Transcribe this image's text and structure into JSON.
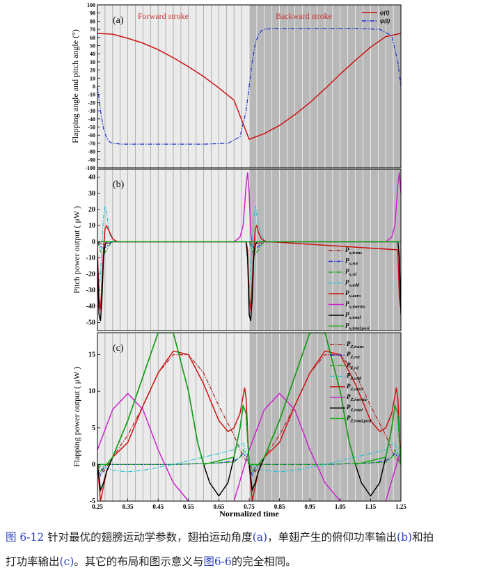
{
  "caption": {
    "fig_label": "图 6-12",
    "line1_a": " 针对最优的翅膀运动学参数，翅拍运动角度",
    "line1_ref_a": "(a)",
    "line1_b": "，单翅产生的俯仰功率输出",
    "line1_ref_b": "(b)",
    "line1_c": "和拍",
    "line2_a": "打功率输出",
    "line2_ref_c": "(c)",
    "line2_b": "。其它的布局和图示意义与",
    "line2_ref_fig": "图6-6",
    "line2_c": "的完全相同。"
  },
  "colors": {
    "trans": "#aa2222",
    "rot": "#1a2ad0",
    "rd": "#1aa81a",
    "add": "#25c4d4",
    "aero": "#cc1111",
    "inertia": "#cc22cc",
    "total": "#000000",
    "total_posi": "#11aa11",
    "stroke_label": "#cc3333",
    "forward_shade": "#ebebeb",
    "backward_shade": "#b8b8b8"
  },
  "chart_data": [
    {
      "type": "line",
      "panel_label": "(a)",
      "ylabel": "Flapping angle and pitch angle (°)",
      "ylim": [
        -100,
        100
      ],
      "yticks": [
        -100,
        -90,
        -80,
        -70,
        -60,
        -50,
        -40,
        -30,
        -20,
        -10,
        0,
        10,
        20,
        30,
        40,
        50,
        60,
        70,
        80,
        90,
        100
      ],
      "xlim": [
        0.25,
        1.25
      ],
      "annotations": [
        "Forward stroke",
        "Backward stroke"
      ],
      "legend_position": "top-right",
      "series": [
        {
          "name": "φ(t)",
          "key": "aero",
          "style": "solid",
          "x": [
            0.25,
            0.3,
            0.35,
            0.4,
            0.45,
            0.5,
            0.55,
            0.6,
            0.65,
            0.7,
            0.75,
            0.8,
            0.85,
            0.9,
            0.95,
            1.0,
            1.05,
            1.1,
            1.15,
            1.2,
            1.25
          ],
          "y": [
            65,
            64,
            59,
            53,
            45,
            35,
            24,
            12,
            -2,
            -17,
            -65,
            -58,
            -48,
            -35,
            -20,
            -3,
            15,
            32,
            48,
            61,
            65
          ]
        },
        {
          "name": "ψ(t)",
          "key": "rot",
          "style": "dashdot",
          "x": [
            0.25,
            0.26,
            0.27,
            0.28,
            0.29,
            0.3,
            0.33,
            0.4,
            0.5,
            0.6,
            0.68,
            0.72,
            0.74,
            0.75,
            0.76,
            0.77,
            0.78,
            0.79,
            0.8,
            0.83,
            0.9,
            1.0,
            1.1,
            1.18,
            1.22,
            1.24,
            1.25
          ],
          "y": [
            0,
            -30,
            -52,
            -63,
            -68,
            -70,
            -71,
            -71,
            -71,
            -71,
            -70,
            -62,
            -30,
            0,
            30,
            52,
            63,
            68,
            70,
            71,
            71,
            71,
            71,
            70,
            62,
            30,
            0
          ]
        }
      ]
    },
    {
      "type": "line",
      "panel_label": "(b)",
      "ylabel": "Pitch power output ( μW )",
      "ylim": [
        -55,
        45
      ],
      "yticks": [
        -50,
        -40,
        -30,
        -20,
        -10,
        0,
        10,
        20,
        30,
        40
      ],
      "xlim": [
        0.25,
        1.25
      ],
      "legend_position": "right",
      "series": [
        {
          "name": "P_x,trans",
          "key": "trans",
          "style": "dashdot",
          "x": [
            0.25,
            0.26,
            0.27,
            0.28,
            0.29,
            0.3,
            0.75,
            0.76,
            0.77,
            0.78,
            0.79,
            0.8,
            1.25
          ],
          "y": [
            0,
            -1,
            -1.5,
            -1,
            -0.5,
            0,
            0,
            -1,
            -1.5,
            -1,
            -0.5,
            0,
            0
          ]
        },
        {
          "name": "P_x,rot",
          "key": "rot",
          "style": "dashdot",
          "x": [
            0.25,
            0.26,
            0.27,
            0.28,
            0.29,
            0.3,
            0.75,
            0.76,
            0.77,
            0.78,
            0.79,
            0.8,
            1.25
          ],
          "y": [
            0,
            -3,
            -4,
            -3,
            -1,
            0,
            0,
            -3,
            -4,
            -3,
            -1,
            0,
            0
          ]
        },
        {
          "name": "P_x,rd",
          "key": "rd",
          "style": "dashdot",
          "x": [
            0.25,
            0.26,
            0.27,
            0.28,
            0.29,
            0.3,
            0.75,
            0.76,
            0.77,
            0.78,
            0.79,
            0.8,
            1.25
          ],
          "y": [
            0,
            -6,
            -8,
            -5,
            -2,
            0,
            0,
            -6,
            -8,
            -5,
            -2,
            0,
            0
          ]
        },
        {
          "name": "P_x,add",
          "key": "add",
          "style": "dashdot",
          "x": [
            0.25,
            0.255,
            0.26,
            0.265,
            0.27,
            0.275,
            0.28,
            0.29,
            0.3,
            0.31,
            0.32,
            0.74,
            0.745,
            0.75,
            0.755,
            0.76,
            0.765,
            0.77,
            0.775,
            0.78,
            0.79,
            0.8,
            0.81,
            0.82,
            1.24,
            1.245,
            1.25
          ],
          "y": [
            -25,
            -30,
            -20,
            0,
            15,
            22,
            18,
            5,
            1,
            0,
            0,
            0,
            -15,
            -30,
            -20,
            0,
            15,
            22,
            18,
            10,
            4,
            1,
            0,
            0,
            0,
            -15,
            -30
          ]
        },
        {
          "name": "P_x,aero",
          "key": "aero",
          "style": "solid",
          "x": [
            0.25,
            0.255,
            0.26,
            0.265,
            0.27,
            0.275,
            0.28,
            0.29,
            0.3,
            0.31,
            0.32,
            0.74,
            0.745,
            0.75,
            0.755,
            0.76,
            0.765,
            0.77,
            0.775,
            0.78,
            0.79,
            0.8,
            0.81,
            0.82,
            1.24,
            1.245,
            1.25
          ],
          "y": [
            -5,
            -35,
            -42,
            -25,
            -5,
            8,
            10,
            6,
            2,
            0.5,
            0,
            0,
            -5,
            -35,
            -42,
            -25,
            -5,
            8,
            10,
            6,
            2,
            0.5,
            0,
            0,
            -5,
            -35,
            -42
          ]
        },
        {
          "name": "P_x,inertia",
          "key": "inertia",
          "style": "solid",
          "x": [
            0.25,
            0.26,
            0.27,
            0.28,
            0.3,
            0.7,
            0.72,
            0.73,
            0.74,
            0.745,
            0.75,
            0.755,
            0.76,
            0.77,
            0.78,
            0.8,
            1.2,
            1.22,
            1.23,
            1.24,
            1.245,
            1.25
          ],
          "y": [
            0,
            0,
            0,
            0,
            0,
            0,
            3,
            10,
            35,
            43,
            30,
            5,
            0,
            0,
            0,
            0,
            0,
            3,
            10,
            35,
            43,
            30
          ]
        },
        {
          "name": "P_x,total",
          "key": "total",
          "style": "solid",
          "x": [
            0.25,
            0.255,
            0.26,
            0.265,
            0.27,
            0.275,
            0.28,
            0.29,
            0.3,
            0.74,
            0.745,
            0.75,
            0.755,
            0.76,
            0.765,
            0.77,
            0.775,
            0.78,
            0.79,
            0.8,
            1.24,
            1.245,
            1.25
          ],
          "y": [
            -10,
            -45,
            -49,
            -35,
            -10,
            -2,
            0,
            0,
            0,
            0,
            -10,
            -45,
            -49,
            -35,
            -10,
            -2,
            0,
            0,
            0,
            0,
            0,
            -10,
            -45
          ]
        },
        {
          "name": "P_x,total,posi",
          "key": "total_posi",
          "style": "solid",
          "x": [
            0.25,
            0.3,
            0.5,
            0.7,
            0.75,
            0.8,
            1.0,
            1.2,
            1.25
          ],
          "y": [
            0,
            0,
            0,
            0,
            0,
            0,
            0,
            0,
            0
          ]
        }
      ]
    },
    {
      "type": "line",
      "panel_label": "(c)",
      "ylabel": "Flapping power output ( μW )",
      "xlabel": "Normalized time",
      "ylim": [
        -5,
        18
      ],
      "yticks": [
        -5,
        0,
        5,
        10,
        15
      ],
      "xlim": [
        0.25,
        1.25
      ],
      "xticks": [
        0.25,
        0.35,
        0.45,
        0.55,
        0.65,
        0.75,
        0.85,
        0.95,
        1.05,
        1.15,
        1.25
      ],
      "xticklabels": [
        "0.25",
        "0.35",
        "0.45",
        "0.55",
        "0.65",
        "0.75",
        "0.85",
        "0.95",
        "1.05",
        "1.15",
        "1.25"
      ],
      "legend_position": "top-right",
      "series": [
        {
          "name": "P_Z,trans",
          "key": "trans",
          "style": "dashdot",
          "x": [
            0.25,
            0.27,
            0.3,
            0.35,
            0.4,
            0.45,
            0.5,
            0.55,
            0.6,
            0.65,
            0.7,
            0.73,
            0.75,
            0.77,
            0.8,
            0.85,
            0.9,
            0.95,
            1.0,
            1.05,
            1.1,
            1.15,
            1.2,
            1.23,
            1.25
          ],
          "y": [
            0,
            -1,
            1,
            4,
            8,
            12.5,
            15,
            15,
            12.5,
            8,
            4,
            1,
            0,
            -1,
            1,
            4,
            8,
            12.5,
            15,
            15,
            12.5,
            8,
            4,
            1,
            0
          ]
        },
        {
          "name": "P_Z,rot",
          "key": "rot",
          "style": "dashdot",
          "x": [
            0.25,
            0.26,
            0.27,
            0.28,
            0.3,
            0.35,
            0.5,
            0.65,
            0.7,
            0.72,
            0.73,
            0.74,
            0.75,
            0.76,
            0.77,
            0.78,
            0.8,
            0.85,
            1.0,
            1.15,
            1.2,
            1.22,
            1.23,
            1.24,
            1.25
          ],
          "y": [
            0,
            -1.5,
            -0.5,
            0,
            0,
            0,
            0,
            0.2,
            0.5,
            1,
            1.5,
            1,
            0,
            -1.5,
            -0.5,
            0,
            0,
            0,
            0,
            0.2,
            0.5,
            1,
            1.5,
            1,
            0
          ]
        },
        {
          "name": "P_Z,rd",
          "key": "rd",
          "style": "dashdot",
          "x": [
            0.25,
            0.26,
            0.27,
            0.28,
            0.3,
            0.5,
            0.7,
            0.72,
            0.73,
            0.74,
            0.75,
            0.76,
            0.77,
            0.78,
            0.8,
            1.0,
            1.2,
            1.22,
            1.23,
            1.24,
            1.25
          ],
          "y": [
            0,
            -1,
            -0.3,
            0,
            0,
            0,
            0.3,
            1,
            2,
            1,
            0,
            -1,
            -0.3,
            0,
            0,
            0,
            0.3,
            1,
            2,
            1,
            0
          ]
        },
        {
          "name": "P_Z,add",
          "key": "add",
          "style": "dashdot",
          "x": [
            0.25,
            0.28,
            0.3,
            0.35,
            0.4,
            0.5,
            0.6,
            0.65,
            0.7,
            0.73,
            0.75,
            0.78,
            0.8,
            0.85,
            0.9,
            1.0,
            1.1,
            1.15,
            1.2,
            1.23,
            1.25
          ],
          "y": [
            0,
            -0.5,
            -0.8,
            -1,
            -0.8,
            0,
            1,
            1.5,
            2,
            3,
            0,
            -0.5,
            -0.8,
            -1,
            -0.8,
            0,
            1,
            1.5,
            2,
            3,
            0
          ]
        },
        {
          "name": "P_Z,aero",
          "key": "aero",
          "style": "solid",
          "x": [
            0.25,
            0.26,
            0.27,
            0.28,
            0.3,
            0.35,
            0.4,
            0.45,
            0.5,
            0.55,
            0.6,
            0.65,
            0.68,
            0.7,
            0.72,
            0.735,
            0.74,
            0.75,
            0.76,
            0.77,
            0.78,
            0.8,
            0.85,
            0.9,
            0.95,
            1.0,
            1.05,
            1.1,
            1.15,
            1.18,
            1.2,
            1.22,
            1.235,
            1.24,
            1.25
          ],
          "y": [
            0,
            -5,
            -3,
            -1,
            1,
            3,
            8,
            12.5,
            15.5,
            15,
            11,
            6,
            4.5,
            5,
            7,
            10.5,
            9,
            0,
            -5,
            -3,
            -1,
            1,
            3,
            8,
            12.5,
            15.5,
            15,
            11,
            6,
            4.5,
            5,
            7,
            10.5,
            9,
            0
          ]
        },
        {
          "name": "P_Z,inertia",
          "key": "inertia",
          "style": "solid",
          "x": [
            0.25,
            0.3,
            0.35,
            0.4,
            0.45,
            0.5,
            0.55,
            0.6,
            0.65,
            0.7,
            0.75,
            0.8,
            0.85,
            0.9,
            0.95,
            1.0,
            1.05,
            1.1,
            1.15,
            1.2,
            1.25
          ],
          "y": [
            2,
            7.5,
            9.7,
            7.5,
            2,
            -2.5,
            -5,
            -6.5,
            -7.5,
            -5,
            2,
            7.5,
            9.7,
            7.5,
            2,
            -2.5,
            -5,
            -6.5,
            -7.5,
            -5,
            2
          ]
        },
        {
          "name": "P_Z,total",
          "key": "total",
          "style": "solid",
          "x": [
            0.25,
            0.26,
            0.27,
            0.28,
            0.3,
            0.35,
            0.4,
            0.45,
            0.5,
            0.55,
            0.58,
            0.6,
            0.62,
            0.65,
            0.68,
            0.7,
            0.72,
            0.73,
            0.74,
            0.75,
            0.76,
            0.77,
            0.78,
            0.8,
            0.85,
            0.9,
            0.95,
            1.0,
            1.05,
            1.08,
            1.1,
            1.12,
            1.15,
            1.18,
            1.2,
            1.22,
            1.23,
            1.24,
            1.25
          ],
          "y": [
            0,
            -3.5,
            -2.5,
            -1,
            1,
            6,
            12,
            18,
            18,
            10,
            3,
            0,
            -2.5,
            -4.3,
            -2.5,
            1,
            5,
            8,
            7,
            0,
            -3.5,
            -2.5,
            -1,
            1,
            6,
            12,
            18,
            18,
            10,
            3,
            0,
            -2.5,
            -4.3,
            -2.5,
            1,
            5,
            8,
            7,
            0
          ]
        },
        {
          "name": "P_Z,total,posi",
          "key": "total_posi",
          "style": "solid",
          "x": [
            0.25,
            0.27,
            0.28,
            0.3,
            0.35,
            0.4,
            0.45,
            0.5,
            0.55,
            0.58,
            0.6,
            0.7,
            0.72,
            0.73,
            0.74,
            0.75,
            0.77,
            0.78,
            0.8,
            0.85,
            0.9,
            0.95,
            1.0,
            1.05,
            1.08,
            1.1,
            1.2,
            1.22,
            1.23,
            1.24,
            1.25
          ],
          "y": [
            0,
            0,
            0,
            1,
            6,
            12,
            18,
            18,
            10,
            3,
            0,
            1,
            5,
            8,
            7,
            0,
            0,
            0,
            1,
            6,
            12,
            18,
            18,
            10,
            3,
            0,
            1,
            5,
            8,
            7,
            0
          ]
        }
      ]
    }
  ]
}
